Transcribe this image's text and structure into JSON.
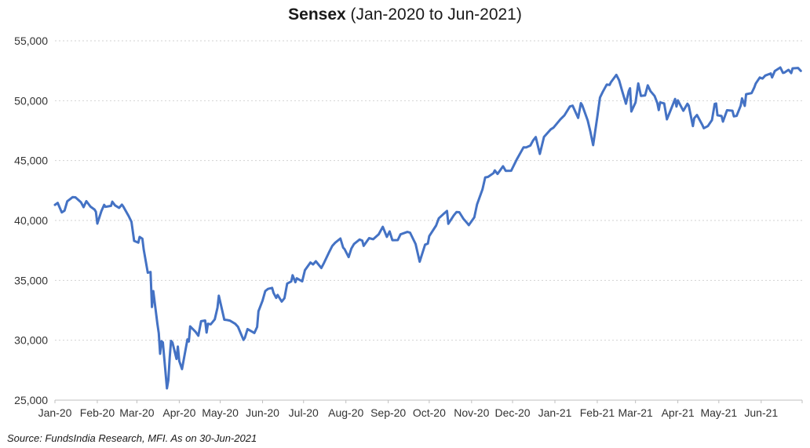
{
  "title": {
    "main": "Sensex",
    "suffix": " (Jan-2020 to Jun-2021)"
  },
  "source_note": "Source: FundsIndia Research, MFI. As on 30-Jun-2021",
  "colors": {
    "line": "#4472C4",
    "gridline": "#D2D2D2",
    "axis": "#BFBFBF",
    "tick_label": "#333333",
    "background": "#FFFFFF"
  },
  "chart_data": {
    "type": "line",
    "title": "Sensex (Jan-2020 to Jun-2021)",
    "xlabel": "",
    "ylabel": "",
    "legend": "none",
    "grid": "horizontal-dotted",
    "ylim": [
      25000,
      55000
    ],
    "y_ticks": [
      25000,
      30000,
      35000,
      40000,
      45000,
      50000,
      55000
    ],
    "y_tick_labels": [
      "25,000",
      "30,000",
      "35,000",
      "40,000",
      "45,000",
      "50,000",
      "55,000"
    ],
    "x_axis_domain": [
      "2020-01-01",
      "2021-07-01"
    ],
    "x_tick_labels": [
      "Jan-20",
      "Feb-20",
      "Mar-20",
      "Apr-20",
      "May-20",
      "Jun-20",
      "Jul-20",
      "Aug-20",
      "Sep-20",
      "Oct-20",
      "Nov-20",
      "Dec-20",
      "Jan-21",
      "Feb-21",
      "Mar-21",
      "Apr-21",
      "May-21",
      "Jun-21"
    ],
    "series": [
      {
        "name": "Sensex",
        "color": "#4472C4",
        "points": [
          [
            "2020-01-01",
            41306
          ],
          [
            "2020-01-03",
            41465
          ],
          [
            "2020-01-06",
            40677
          ],
          [
            "2020-01-08",
            40817
          ],
          [
            "2020-01-10",
            41600
          ],
          [
            "2020-01-14",
            41953
          ],
          [
            "2020-01-16",
            41933
          ],
          [
            "2020-01-20",
            41529
          ],
          [
            "2020-01-22",
            41115
          ],
          [
            "2020-01-24",
            41613
          ],
          [
            "2020-01-27",
            41155
          ],
          [
            "2020-01-30",
            40913
          ],
          [
            "2020-01-31",
            40723
          ],
          [
            "2020-02-01",
            39735
          ],
          [
            "2020-02-04",
            40789
          ],
          [
            "2020-02-06",
            41306
          ],
          [
            "2020-02-07",
            41141
          ],
          [
            "2020-02-11",
            41216
          ],
          [
            "2020-02-12",
            41565
          ],
          [
            "2020-02-14",
            41258
          ],
          [
            "2020-02-17",
            41055
          ],
          [
            "2020-02-19",
            41323
          ],
          [
            "2020-02-20",
            41170
          ],
          [
            "2020-02-24",
            40363
          ],
          [
            "2020-02-26",
            39889
          ],
          [
            "2020-02-28",
            38297
          ],
          [
            "2020-03-02",
            38144
          ],
          [
            "2020-03-03",
            38623
          ],
          [
            "2020-03-05",
            38471
          ],
          [
            "2020-03-06",
            37577
          ],
          [
            "2020-03-09",
            35635
          ],
          [
            "2020-03-11",
            35697
          ],
          [
            "2020-03-12",
            32778
          ],
          [
            "2020-03-13",
            34103
          ],
          [
            "2020-03-16",
            31390
          ],
          [
            "2020-03-17",
            30579
          ],
          [
            "2020-03-18",
            28870
          ],
          [
            "2020-03-19",
            29916
          ],
          [
            "2020-03-20",
            29816
          ],
          [
            "2020-03-23",
            25981
          ],
          [
            "2020-03-24",
            26674
          ],
          [
            "2020-03-25",
            28536
          ],
          [
            "2020-03-26",
            29947
          ],
          [
            "2020-03-27",
            29816
          ],
          [
            "2020-03-30",
            28440
          ],
          [
            "2020-03-31",
            29468
          ],
          [
            "2020-04-01",
            28265
          ],
          [
            "2020-04-03",
            27591
          ],
          [
            "2020-04-07",
            30067
          ],
          [
            "2020-04-08",
            29894
          ],
          [
            "2020-04-09",
            31160
          ],
          [
            "2020-04-13",
            30690
          ],
          [
            "2020-04-15",
            30380
          ],
          [
            "2020-04-17",
            31589
          ],
          [
            "2020-04-20",
            31648
          ],
          [
            "2020-04-21",
            30637
          ],
          [
            "2020-04-22",
            31380
          ],
          [
            "2020-04-24",
            31327
          ],
          [
            "2020-04-27",
            31743
          ],
          [
            "2020-04-29",
            32721
          ],
          [
            "2020-04-30",
            33718
          ],
          [
            "2020-05-04",
            31715
          ],
          [
            "2020-05-06",
            31686
          ],
          [
            "2020-05-08",
            31643
          ],
          [
            "2020-05-12",
            31371
          ],
          [
            "2020-05-14",
            31123
          ],
          [
            "2020-05-18",
            30029
          ],
          [
            "2020-05-19",
            30196
          ],
          [
            "2020-05-21",
            30933
          ],
          [
            "2020-05-26",
            30609
          ],
          [
            "2020-05-28",
            31110
          ],
          [
            "2020-05-29",
            32424
          ],
          [
            "2020-06-01",
            33304
          ],
          [
            "2020-06-03",
            34110
          ],
          [
            "2020-06-05",
            34287
          ],
          [
            "2020-06-08",
            34371
          ],
          [
            "2020-06-09",
            33957
          ],
          [
            "2020-06-11",
            33538
          ],
          [
            "2020-06-12",
            33781
          ],
          [
            "2020-06-15",
            33229
          ],
          [
            "2020-06-17",
            33508
          ],
          [
            "2020-06-19",
            34732
          ],
          [
            "2020-06-22",
            34911
          ],
          [
            "2020-06-23",
            35430
          ],
          [
            "2020-06-25",
            34842
          ],
          [
            "2020-06-26",
            35171
          ],
          [
            "2020-06-30",
            34916
          ],
          [
            "2020-07-02",
            35844
          ],
          [
            "2020-07-06",
            36487
          ],
          [
            "2020-07-08",
            36329
          ],
          [
            "2020-07-10",
            36594
          ],
          [
            "2020-07-14",
            36033
          ],
          [
            "2020-07-16",
            36472
          ],
          [
            "2020-07-20",
            37418
          ],
          [
            "2020-07-22",
            37872
          ],
          [
            "2020-07-24",
            38129
          ],
          [
            "2020-07-28",
            38492
          ],
          [
            "2020-07-30",
            37736
          ],
          [
            "2020-07-31",
            37607
          ],
          [
            "2020-08-03",
            36939
          ],
          [
            "2020-08-05",
            37663
          ],
          [
            "2020-08-07",
            38041
          ],
          [
            "2020-08-11",
            38407
          ],
          [
            "2020-08-13",
            38310
          ],
          [
            "2020-08-14",
            37877
          ],
          [
            "2020-08-18",
            38528
          ],
          [
            "2020-08-21",
            38435
          ],
          [
            "2020-08-25",
            38844
          ],
          [
            "2020-08-28",
            39467
          ],
          [
            "2020-08-31",
            38628
          ],
          [
            "2020-09-02",
            39086
          ],
          [
            "2020-09-04",
            38357
          ],
          [
            "2020-09-08",
            38365
          ],
          [
            "2020-09-10",
            38840
          ],
          [
            "2020-09-15",
            39044
          ],
          [
            "2020-09-17",
            38980
          ],
          [
            "2020-09-21",
            38034
          ],
          [
            "2020-09-24",
            36554
          ],
          [
            "2020-09-28",
            37982
          ],
          [
            "2020-09-30",
            38068
          ],
          [
            "2020-10-01",
            38697
          ],
          [
            "2020-10-06",
            39575
          ],
          [
            "2020-10-08",
            40183
          ],
          [
            "2020-10-12",
            40594
          ],
          [
            "2020-10-14",
            40795
          ],
          [
            "2020-10-15",
            39728
          ],
          [
            "2020-10-19",
            40431
          ],
          [
            "2020-10-21",
            40707
          ],
          [
            "2020-10-23",
            40686
          ],
          [
            "2020-10-26",
            40146
          ],
          [
            "2020-10-29",
            39750
          ],
          [
            "2020-10-30",
            39614
          ],
          [
            "2020-11-03",
            40261
          ],
          [
            "2020-11-05",
            41340
          ],
          [
            "2020-11-09",
            42597
          ],
          [
            "2020-11-11",
            43594
          ],
          [
            "2020-11-13",
            43637
          ],
          [
            "2020-11-17",
            43952
          ],
          [
            "2020-11-18",
            44180
          ],
          [
            "2020-11-20",
            43882
          ],
          [
            "2020-11-24",
            44523
          ],
          [
            "2020-11-26",
            44147
          ],
          [
            "2020-11-30",
            44150
          ],
          [
            "2020-12-02",
            44618
          ],
          [
            "2020-12-04",
            45080
          ],
          [
            "2020-12-09",
            46104
          ],
          [
            "2020-12-11",
            46099
          ],
          [
            "2020-12-14",
            46253
          ],
          [
            "2020-12-16",
            46666
          ],
          [
            "2020-12-18",
            46961
          ],
          [
            "2020-12-21",
            45554
          ],
          [
            "2020-12-24",
            46974
          ],
          [
            "2020-12-29",
            47613
          ],
          [
            "2020-12-31",
            47751
          ],
          [
            "2021-01-05",
            48438
          ],
          [
            "2021-01-08",
            48783
          ],
          [
            "2021-01-12",
            49517
          ],
          [
            "2021-01-14",
            49584
          ],
          [
            "2021-01-18",
            48564
          ],
          [
            "2021-01-20",
            49792
          ],
          [
            "2021-01-21",
            49625
          ],
          [
            "2021-01-25",
            48348
          ],
          [
            "2021-01-27",
            47410
          ],
          [
            "2021-01-29",
            46286
          ],
          [
            "2021-02-01",
            48601
          ],
          [
            "2021-02-03",
            50256
          ],
          [
            "2021-02-05",
            50732
          ],
          [
            "2021-02-08",
            51349
          ],
          [
            "2021-02-10",
            51309
          ],
          [
            "2021-02-11",
            51532
          ],
          [
            "2021-02-15",
            52154
          ],
          [
            "2021-02-17",
            51704
          ],
          [
            "2021-02-19",
            50890
          ],
          [
            "2021-02-22",
            49744
          ],
          [
            "2021-02-24",
            50782
          ],
          [
            "2021-02-25",
            51039
          ],
          [
            "2021-02-26",
            49100
          ],
          [
            "2021-03-01",
            49850
          ],
          [
            "2021-03-03",
            51445
          ],
          [
            "2021-03-05",
            50405
          ],
          [
            "2021-03-08",
            50441
          ],
          [
            "2021-03-10",
            51280
          ],
          [
            "2021-03-12",
            50792
          ],
          [
            "2021-03-15",
            50395
          ],
          [
            "2021-03-17",
            49802
          ],
          [
            "2021-03-18",
            49216
          ],
          [
            "2021-03-19",
            49858
          ],
          [
            "2021-03-22",
            49771
          ],
          [
            "2021-03-24",
            48440
          ],
          [
            "2021-03-26",
            49009
          ],
          [
            "2021-03-30",
            50137
          ],
          [
            "2021-03-31",
            49509
          ],
          [
            "2021-04-01",
            50030
          ],
          [
            "2021-04-05",
            49159
          ],
          [
            "2021-04-08",
            49746
          ],
          [
            "2021-04-09",
            49591
          ],
          [
            "2021-04-12",
            47883
          ],
          [
            "2021-04-13",
            48544
          ],
          [
            "2021-04-15",
            48804
          ],
          [
            "2021-04-19",
            47949
          ],
          [
            "2021-04-20",
            47706
          ],
          [
            "2021-04-23",
            47878
          ],
          [
            "2021-04-26",
            48387
          ],
          [
            "2021-04-28",
            49734
          ],
          [
            "2021-04-29",
            49766
          ],
          [
            "2021-04-30",
            48782
          ],
          [
            "2021-05-03",
            48719
          ],
          [
            "2021-05-04",
            48254
          ],
          [
            "2021-05-07",
            49206
          ],
          [
            "2021-05-11",
            49162
          ],
          [
            "2021-05-12",
            48691
          ],
          [
            "2021-05-14",
            48733
          ],
          [
            "2021-05-17",
            49581
          ],
          [
            "2021-05-18",
            50193
          ],
          [
            "2021-05-20",
            49565
          ],
          [
            "2021-05-21",
            50540
          ],
          [
            "2021-05-25",
            50638
          ],
          [
            "2021-05-27",
            51115
          ],
          [
            "2021-05-28",
            51423
          ],
          [
            "2021-05-31",
            51937
          ],
          [
            "2021-06-02",
            51849
          ],
          [
            "2021-06-04",
            52100
          ],
          [
            "2021-06-08",
            52276
          ],
          [
            "2021-06-09",
            51941
          ],
          [
            "2021-06-11",
            52475
          ],
          [
            "2021-06-15",
            52773
          ],
          [
            "2021-06-17",
            52323
          ],
          [
            "2021-06-18",
            52344
          ],
          [
            "2021-06-21",
            52574
          ],
          [
            "2021-06-23",
            52307
          ],
          [
            "2021-06-24",
            52699
          ],
          [
            "2021-06-28",
            52735
          ],
          [
            "2021-06-30",
            52483
          ]
        ]
      }
    ]
  }
}
